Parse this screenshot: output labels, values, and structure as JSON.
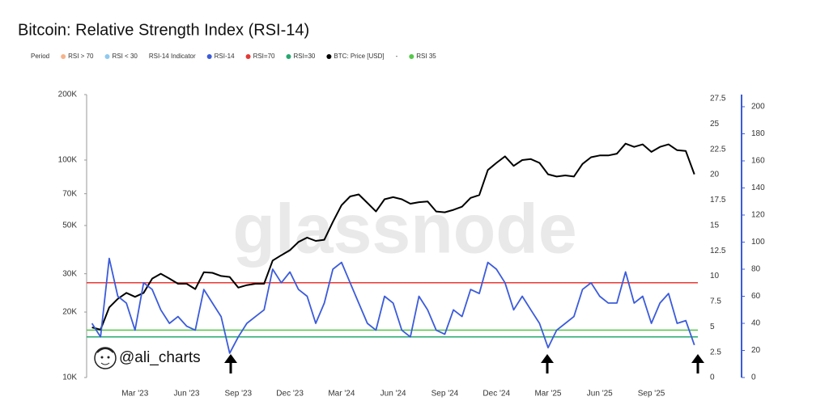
{
  "chart_data": {
    "type": "line",
    "title": "Bitcoin: Relative Strength Index (RSI-14)",
    "watermark": "glassnode",
    "handle": "@ali_charts",
    "legend": [
      {
        "name": "Period"
      },
      {
        "name": "RSI > 70",
        "color": "#f5b48a"
      },
      {
        "name": "RSI < 30",
        "color": "#8ec9ef"
      },
      {
        "name": "RSI-14 Indicator"
      },
      {
        "name": "RSI-14",
        "color": "#3b5bdb"
      },
      {
        "name": "RSI=70",
        "color": "#e53935"
      },
      {
        "name": "RSI=30",
        "color": "#26a86f"
      },
      {
        "name": "BTC: Price [USD]",
        "color": "#000000"
      },
      {
        "name": "-"
      },
      {
        "name": "RSI 35",
        "color": "#55c84a"
      }
    ],
    "categories": [
      null,
      null,
      null,
      null,
      null,
      "Mar '23",
      null,
      null,
      null,
      null,
      null,
      "Jun '23",
      null,
      null,
      null,
      null,
      null,
      "Sep '23",
      null,
      null,
      null,
      null,
      null,
      "Dec '23",
      null,
      null,
      null,
      null,
      null,
      "Mar '24",
      null,
      null,
      null,
      null,
      null,
      "Jun '24",
      null,
      null,
      null,
      null,
      null,
      "Sep '24",
      null,
      null,
      null,
      null,
      null,
      "Dec '24",
      null,
      null,
      null,
      null,
      null,
      "Mar '25",
      null,
      null,
      null,
      null,
      null,
      "Jun '25",
      null,
      null,
      null,
      null,
      null,
      "Sep '25",
      null,
      null,
      null,
      null,
      null
    ],
    "series": [
      {
        "color": "#000000",
        "axis": "y",
        "values": [
          17000,
          16600,
          21000,
          23000,
          24500,
          23500,
          24500,
          28500,
          30000,
          28500,
          27000,
          27000,
          25500,
          30500,
          30300,
          29300,
          29000,
          25900,
          26600,
          27000,
          27000,
          34500,
          36500,
          38500,
          42000,
          44000,
          42500,
          43000,
          52000,
          62000,
          68000,
          69500,
          63500,
          58000,
          66000,
          67500,
          66000,
          63000,
          64000,
          64500,
          58000,
          57500,
          59000,
          61000,
          67000,
          69000,
          90000,
          97000,
          104000,
          94000,
          100000,
          101000,
          97000,
          86000,
          84000,
          85000,
          84000,
          96000,
          103000,
          105000,
          105000,
          107000,
          119000,
          115000,
          118000,
          109000,
          115000,
          118000,
          111000,
          110000,
          86000
        ]
      },
      {
        "color": "#3b5bdb",
        "axis": "y2",
        "values": [
          40,
          30,
          88,
          60,
          55,
          35,
          70,
          65,
          50,
          40,
          45,
          38,
          35,
          65,
          55,
          45,
          18,
          30,
          40,
          45,
          50,
          80,
          70,
          78,
          65,
          60,
          40,
          55,
          80,
          85,
          70,
          55,
          40,
          35,
          60,
          55,
          35,
          30,
          60,
          50,
          35,
          32,
          50,
          45,
          65,
          62,
          85,
          80,
          70,
          50,
          60,
          50,
          40,
          22,
          35,
          40,
          45,
          65,
          70,
          60,
          55,
          55,
          78,
          55,
          60,
          40,
          55,
          62,
          40,
          42,
          24
        ]
      }
    ],
    "reference_lines": [
      {
        "value": 70,
        "color": "#e53935",
        "axis": "y2"
      },
      {
        "value": 35,
        "color": "#55c84a",
        "axis": "y2"
      },
      {
        "value": 30,
        "color": "#26a86f",
        "axis": "y2"
      }
    ],
    "log_y": true,
    "ylim": [
      10000,
      200000
    ],
    "yticks": [
      {
        "value": 10000,
        "label": "10K"
      },
      {
        "value": 20000,
        "label": "20K"
      },
      {
        "value": 30000,
        "label": "30K"
      },
      {
        "value": 50000,
        "label": "50K"
      },
      {
        "value": 70000,
        "label": "70K"
      },
      {
        "value": 100000,
        "label": "100K"
      },
      {
        "value": 200000,
        "label": "200K"
      }
    ],
    "y3lim": [
      0,
      27.5
    ],
    "y3ticks": [
      0,
      2.5,
      5,
      7.5,
      10,
      12.5,
      15,
      17.5,
      20,
      22.5,
      25,
      27.5
    ],
    "y2lim": [
      0,
      200
    ],
    "y2ticks": [
      0,
      20,
      40,
      60,
      80,
      100,
      120,
      140,
      160,
      180,
      200
    ]
  }
}
